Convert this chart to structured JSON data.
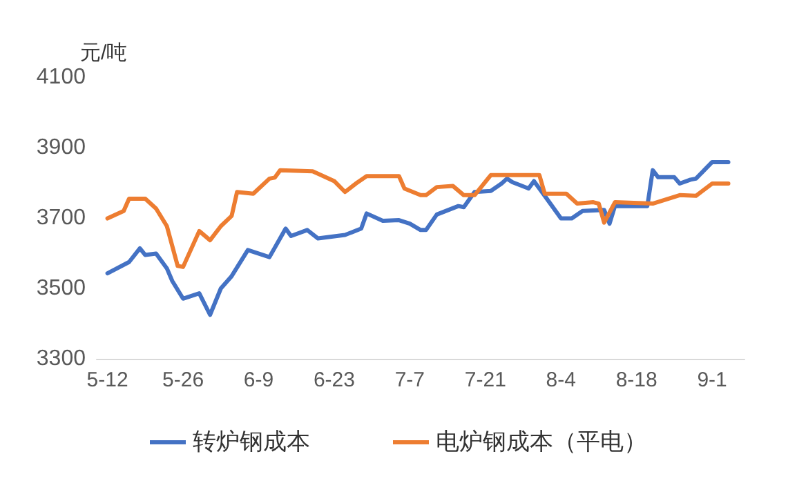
{
  "chart_data": {
    "type": "line",
    "ylabel": "元/吨",
    "xlim": [
      "--05-10",
      "--09-07"
    ],
    "xticks": [
      {
        "value": "--05-12",
        "label": "5-12"
      },
      {
        "value": "--05-26",
        "label": "5-26"
      },
      {
        "value": "--06-09",
        "label": "6-9"
      },
      {
        "value": "--06-23",
        "label": "6-23"
      },
      {
        "value": "--07-07",
        "label": "7-7"
      },
      {
        "value": "--07-21",
        "label": "7-21"
      },
      {
        "value": "--08-04",
        "label": "8-4"
      },
      {
        "value": "--08-18",
        "label": "8-18"
      },
      {
        "value": "--09-01",
        "label": "9-1"
      }
    ],
    "ylim": [
      3300,
      4100
    ],
    "yticks": [
      3300,
      3500,
      3700,
      3900,
      4100
    ],
    "grid": false,
    "legend": "bottom",
    "marker": "none",
    "line_style": "solid",
    "series": [
      {
        "name": "转炉钢成本",
        "color": "#4472c4",
        "x": [
          "--05-12",
          "--05-16",
          "--05-18",
          "--05-19",
          "--05-21",
          "--05-23",
          "--05-24",
          "--05-26",
          "--05-29",
          "--05-31",
          "--06-02",
          "--06-04",
          "--06-07",
          "--06-11",
          "--06-14",
          "--06-15",
          "--06-18",
          "--06-20",
          "--06-25",
          "--06-28",
          "--06-29",
          "--07-02",
          "--07-05",
          "--07-07",
          "--07-09",
          "--07-10",
          "--07-12",
          "--07-16",
          "--07-17",
          "--07-19",
          "--07-22",
          "--07-24",
          "--07-25",
          "--07-26",
          "--07-29",
          "--07-30",
          "--08-01",
          "--08-04",
          "--08-06",
          "--08-08",
          "--08-12",
          "--08-13",
          "--08-14",
          "--08-20",
          "--08-21",
          "--08-22",
          "--08-25",
          "--08-26",
          "--08-28",
          "--08-29",
          "--09-01",
          "--09-04"
        ],
        "values": [
          3543,
          3575,
          3614,
          3595,
          3599,
          3557,
          3521,
          3471,
          3486,
          3425,
          3500,
          3535,
          3609,
          3589,
          3670,
          3649,
          3666,
          3642,
          3652,
          3670,
          3713,
          3692,
          3694,
          3684,
          3666,
          3666,
          3710,
          3734,
          3731,
          3774,
          3777,
          3798,
          3812,
          3802,
          3784,
          3805,
          3763,
          3699,
          3699,
          3720,
          3723,
          3684,
          3734,
          3734,
          3836,
          3816,
          3816,
          3798,
          3809,
          3812,
          3859,
          3859
        ]
      },
      {
        "name": "电炉钢成本（平电）",
        "color": "#ed7d31",
        "x": [
          "--05-12",
          "--05-15",
          "--05-16",
          "--05-19",
          "--05-21",
          "--05-23",
          "--05-25",
          "--05-26",
          "--05-29",
          "--05-31",
          "--06-02",
          "--06-04",
          "--06-05",
          "--06-08",
          "--06-11",
          "--06-12",
          "--06-13",
          "--06-19",
          "--06-23",
          "--06-25",
          "--06-27",
          "--06-29",
          "--07-05",
          "--07-06",
          "--07-09",
          "--07-10",
          "--07-12",
          "--07-15",
          "--07-17",
          "--07-19",
          "--07-22",
          "--07-31",
          "--08-01",
          "--08-05",
          "--08-07",
          "--08-10",
          "--08-11",
          "--08-12",
          "--08-14",
          "--08-21",
          "--08-26",
          "--08-29",
          "--09-01",
          "--09-04"
        ],
        "values": [
          3699,
          3720,
          3755,
          3755,
          3727,
          3677,
          3564,
          3561,
          3663,
          3637,
          3677,
          3706,
          3774,
          3769,
          3812,
          3815,
          3836,
          3833,
          3805,
          3774,
          3798,
          3819,
          3819,
          3784,
          3765,
          3765,
          3788,
          3791,
          3765,
          3765,
          3822,
          3822,
          3769,
          3769,
          3741,
          3745,
          3741,
          3687,
          3745,
          3741,
          3765,
          3763,
          3798,
          3798
        ]
      }
    ]
  }
}
